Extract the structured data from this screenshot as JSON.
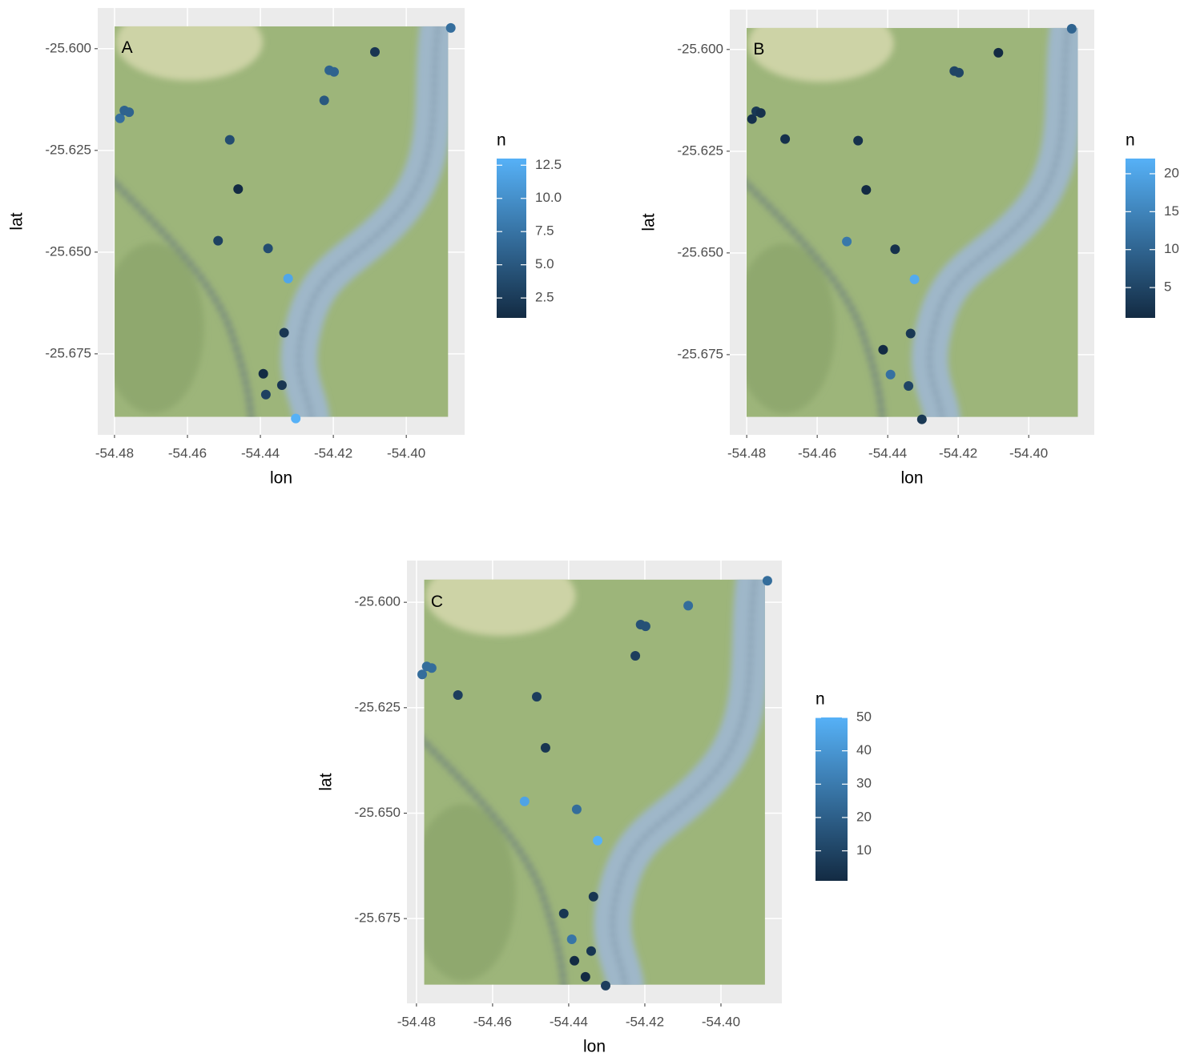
{
  "chart_data": [
    {
      "type": "scatter",
      "annotation": "A",
      "x_label": "lon",
      "y_label": "lat",
      "x": [
        -54.3878,
        -54.4086,
        -54.4211,
        -54.4198,
        -54.4225,
        -54.4785,
        -54.4773,
        -54.476,
        -54.4484,
        -54.4461,
        -54.4516,
        -54.4379,
        -54.4324,
        -54.4335,
        -54.4392,
        -54.4385,
        -54.4341,
        -54.4303
      ],
      "y": [
        -25.5949,
        -25.6008,
        -25.6053,
        -25.6057,
        -25.6127,
        -25.6171,
        -25.6152,
        -25.6156,
        -25.6224,
        -25.6345,
        -25.6472,
        -25.6491,
        -25.6565,
        -25.6698,
        -25.6799,
        -25.685,
        -25.6827,
        -25.6909
      ],
      "values": [
        7,
        2,
        6,
        6,
        5,
        7,
        6,
        6,
        4,
        1,
        3,
        4,
        12,
        2,
        1,
        3,
        2,
        13
      ],
      "xlim": [
        -54.4846,
        -54.384
      ],
      "ylim": [
        -25.6949,
        -25.59
      ],
      "xticks": [
        -54.48,
        -54.46,
        -54.44,
        -54.42,
        {
          "value": -54.4,
          "label": "-54.40"
        }
      ],
      "yticks": [
        {
          "value": -25.6,
          "label": "-25.600"
        },
        -25.625,
        {
          "value": -25.65,
          "label": "-25.650"
        },
        -25.675
      ],
      "grid": true,
      "legend": {
        "title": "n",
        "lim": [
          1,
          13
        ],
        "ticks": [
          2.5,
          {
            "value": 5,
            "label": "5.0"
          },
          7.5,
          {
            "value": 10,
            "label": "10.0"
          },
          12.5
        ],
        "colors": [
          "#132B43",
          "#56B1F7"
        ]
      }
    },
    {
      "type": "scatter",
      "annotation": "B",
      "x_label": "lon",
      "y_label": "lat",
      "x": [
        -54.3878,
        -54.4086,
        -54.4211,
        -54.4198,
        -54.4785,
        -54.4773,
        -54.476,
        -54.4691,
        -54.4484,
        -54.4461,
        -54.4516,
        -54.4379,
        -54.4324,
        -54.4335,
        -54.4413,
        -54.4392,
        -54.4341,
        -54.4303
      ],
      "y": [
        -25.5949,
        -25.6008,
        -25.6053,
        -25.6057,
        -25.6171,
        -25.6152,
        -25.6156,
        -25.622,
        -25.6224,
        -25.6345,
        -25.6472,
        -25.6491,
        -25.6565,
        -25.6698,
        -25.6738,
        -25.6799,
        -25.6827,
        -25.6909
      ],
      "values": [
        10,
        1,
        5,
        5,
        2,
        3,
        2,
        2,
        2,
        1,
        13,
        2,
        21,
        3,
        1,
        12,
        5,
        3
      ],
      "xlim": [
        -54.4848,
        -54.3814
      ],
      "ylim": [
        -25.6947,
        -25.5902
      ],
      "xticks": [
        -54.48,
        -54.46,
        -54.44,
        -54.42,
        {
          "value": -54.4,
          "label": "-54.40"
        }
      ],
      "yticks": [
        {
          "value": -25.6,
          "label": "-25.600"
        },
        -25.625,
        {
          "value": -25.65,
          "label": "-25.650"
        },
        -25.675
      ],
      "grid": true,
      "legend": {
        "title": "n",
        "lim": [
          1,
          22
        ],
        "ticks": [
          5,
          10,
          15,
          20
        ],
        "colors": [
          "#132B43",
          "#56B1F7"
        ]
      }
    },
    {
      "type": "scatter",
      "annotation": "C",
      "x_label": "lon",
      "y_label": "lat",
      "x": [
        -54.3878,
        -54.4086,
        -54.4211,
        -54.4198,
        -54.4225,
        -54.4785,
        -54.4773,
        -54.476,
        -54.4691,
        -54.4484,
        -54.4461,
        -54.4516,
        -54.4379,
        -54.4324,
        -54.4335,
        -54.4413,
        -54.4392,
        -54.4385,
        -54.4341,
        -54.4356,
        -54.4303
      ],
      "y": [
        -25.5949,
        -25.6008,
        -25.6053,
        -25.6057,
        -25.6127,
        -25.6171,
        -25.6152,
        -25.6156,
        -25.622,
        -25.6224,
        -25.6345,
        -25.6472,
        -25.6491,
        -25.6565,
        -25.6698,
        -25.6738,
        -25.6799,
        -25.685,
        -25.6827,
        -25.6888,
        -25.6909
      ],
      "values": [
        25,
        25,
        15,
        15,
        8,
        25,
        25,
        25,
        8,
        8,
        5,
        45,
        25,
        50,
        5,
        5,
        28,
        1,
        5,
        1,
        8
      ],
      "xlim": [
        -54.4825,
        -54.384
      ],
      "ylim": [
        -25.6951,
        -25.5901
      ],
      "xticks": [
        -54.48,
        -54.46,
        -54.44,
        -54.42,
        {
          "value": -54.4,
          "label": "-54.40"
        }
      ],
      "yticks": [
        {
          "value": -25.6,
          "label": "-25.600"
        },
        -25.625,
        {
          "value": -25.65,
          "label": "-25.650"
        },
        -25.675
      ],
      "grid": true,
      "legend": {
        "title": "n",
        "lim": [
          1,
          50
        ],
        "ticks": [
          10,
          20,
          30,
          40,
          50
        ],
        "colors": [
          "#132B43",
          "#56B1F7"
        ]
      }
    }
  ]
}
